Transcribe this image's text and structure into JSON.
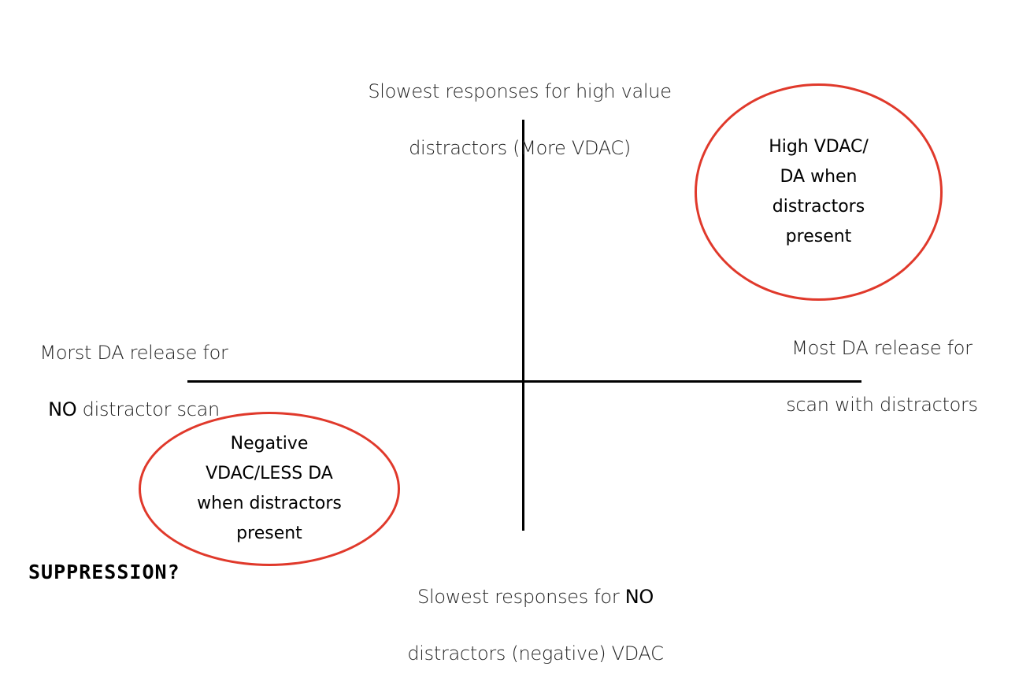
{
  "labels": {
    "top_line1": "Slowest responses  for high value",
    "top_line2": "distractors  (More VDAC)",
    "bottom_line1_pre": "Slowest responses for ",
    "bottom_line1_emph": "NO",
    "bottom_line2": "distractors (negative) VDAC",
    "left_line1": "Morst DA release for",
    "left_line2_emph": "NO",
    "left_line2_post": " distractor scan",
    "right_line1": "Most DA release for",
    "right_line2": "scan with distractors"
  },
  "ellipses": {
    "top_right": "High VDAC/\nDA when\ndistractors\npresent",
    "bottom_left": "Negative\nVDAC/LESS DA\nwhen distractors\npresent"
  },
  "annotation": {
    "suppression": "SUPPRESSION?"
  },
  "colors": {
    "ellipse_border": "#e0392b",
    "axis": "#000000"
  }
}
